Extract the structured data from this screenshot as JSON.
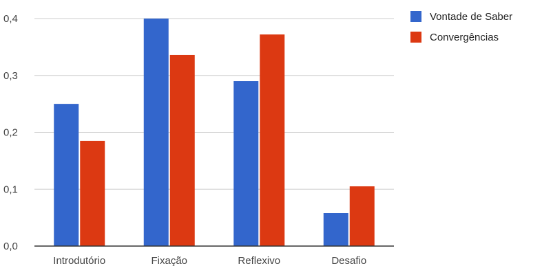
{
  "chart_data": {
    "type": "bar",
    "categories": [
      "Introdutório",
      "Fixação",
      "Reflexivo",
      "Desafio"
    ],
    "series": [
      {
        "name": "Vontade de Saber",
        "values": [
          0.25,
          0.4,
          0.29,
          0.058
        ],
        "color": "#3366cc"
      },
      {
        "name": "Convergências",
        "values": [
          0.185,
          0.336,
          0.372,
          0.105
        ],
        "color": "#dc3912"
      }
    ],
    "y_ticks": [
      {
        "value": 0.0,
        "label": "0,0"
      },
      {
        "value": 0.1,
        "label": "0,1"
      },
      {
        "value": 0.2,
        "label": "0,2"
      },
      {
        "value": 0.3,
        "label": "0,3"
      },
      {
        "value": 0.4,
        "label": "0,4"
      }
    ],
    "ylim": [
      0,
      0.4
    ],
    "grid": true,
    "legend_position": "right-top",
    "title": "",
    "xlabel": "",
    "ylabel": ""
  }
}
